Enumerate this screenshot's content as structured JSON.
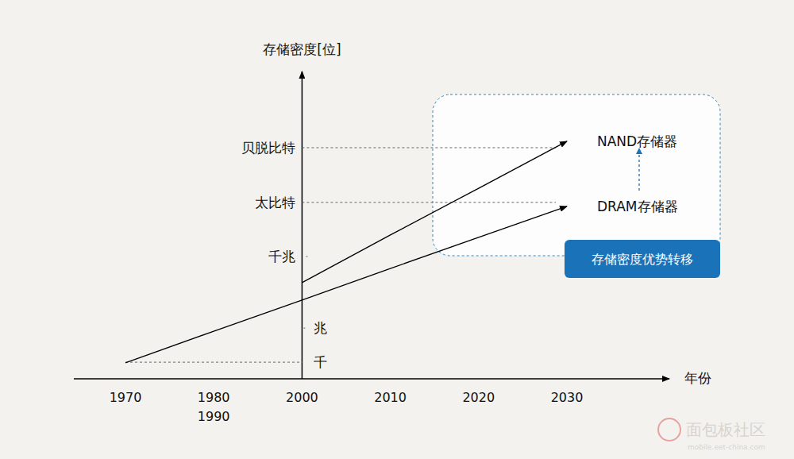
{
  "chart_data": {
    "type": "line",
    "x_label": "年份",
    "y_label": "存储密度[位]",
    "categories": [
      "1970",
      "1980\n1990",
      "2000",
      "2010",
      "2020",
      "2030"
    ],
    "ylim": [
      0,
      100
    ],
    "yticks": [
      {
        "value": 5.4,
        "label": "千"
      },
      {
        "value": 16.5,
        "label": "兆"
      },
      {
        "value": 39.8,
        "label": "千兆"
      },
      {
        "value": 57.4,
        "label": "太比特"
      },
      {
        "value": 75.2,
        "label": "贝脱比特"
      }
    ],
    "series": [
      {
        "name": "NAND存储器",
        "color": "#000000",
        "values": [
          null,
          null,
          31.3,
          46.8,
          62.0,
          77.3
        ]
      },
      {
        "name": "DRAM存储器",
        "color": "#000000",
        "values": [
          5.2,
          15.5,
          25.6,
          35.9,
          46.0,
          56.1
        ]
      }
    ],
    "annotation": "存储密度优势转移",
    "watermark": "面包板社区",
    "watermark_url": "mobile.eet-china.com"
  }
}
